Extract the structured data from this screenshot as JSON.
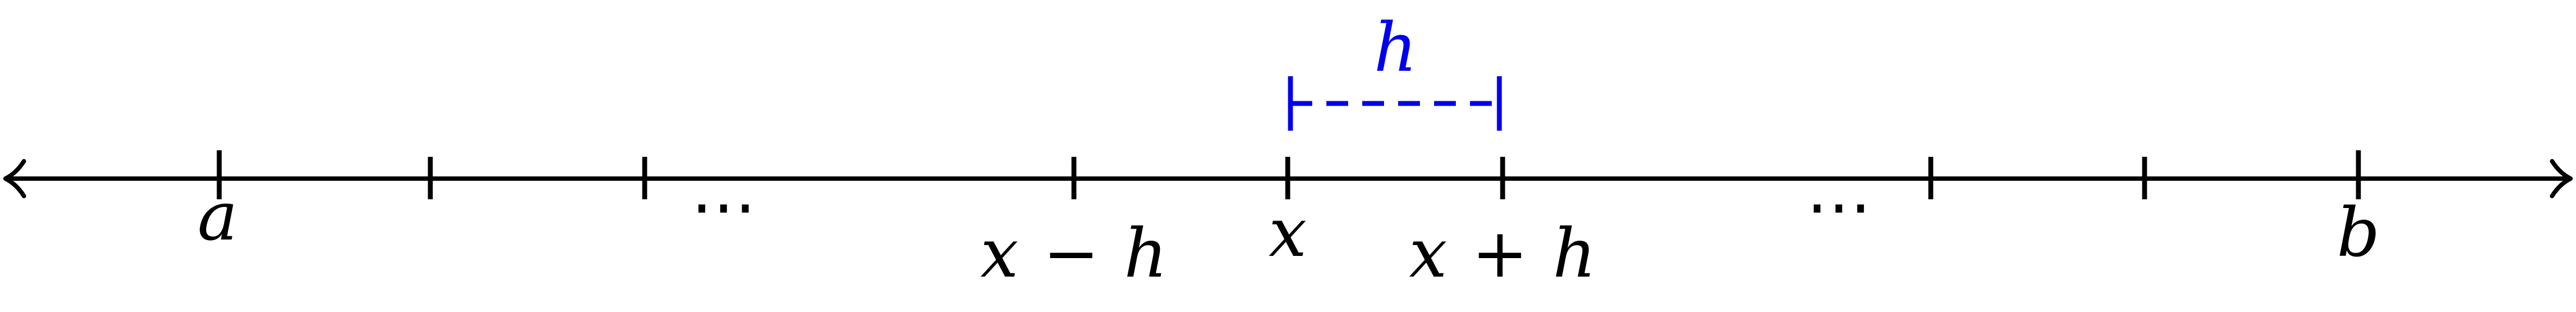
{
  "number_line": {
    "line_color": "#000000",
    "accent_color": "#0000ee",
    "left_arrow": "arrow-left",
    "right_arrow": "arrow-right"
  },
  "labels": {
    "a": "a",
    "dots_left": "⋯",
    "x_minus_h": {
      "var": "x",
      "op": "−",
      "step": "h"
    },
    "x": "x",
    "x_plus_h": {
      "var": "x",
      "op": "+",
      "step": "h"
    },
    "dots_right": "⋯",
    "b": "b"
  },
  "step_indicator": {
    "label": "h"
  }
}
